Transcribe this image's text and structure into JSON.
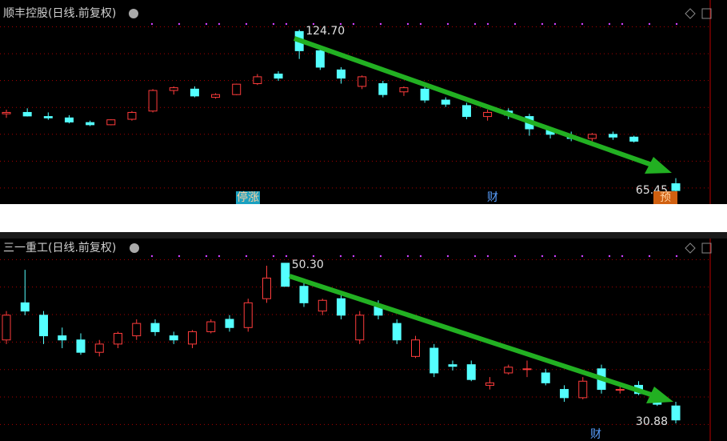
{
  "chart_data": [
    {
      "type": "candlestick",
      "title": "顺丰控股(日线.前复权)",
      "ylim": [
        61.06,
        135.5
      ],
      "max_label": "124.70",
      "min_label": "65.45",
      "markers": [
        "停涨",
        "财",
        "预"
      ],
      "up_color": "#ff3c3c",
      "down_color": "#54ffff",
      "open": [
        94,
        94.5,
        93,
        92.5,
        90.8,
        90,
        92,
        95,
        102.5,
        103,
        100,
        101,
        105,
        108.5,
        124,
        117,
        110,
        104,
        105,
        102,
        103,
        99,
        97,
        93,
        95,
        93,
        88,
        86,
        85,
        86.5,
        85.5,
        73,
        68.5
      ],
      "high": [
        95.5,
        96,
        94.5,
        93.5,
        91.5,
        92,
        95,
        103,
        104,
        104,
        101.5,
        105,
        108.5,
        109.5,
        124.7,
        118,
        111,
        108,
        106,
        104,
        104,
        100,
        98,
        95.5,
        96,
        94,
        89,
        87.5,
        87,
        87.5,
        86,
        73.5,
        70.5
      ],
      "low": [
        92.5,
        93,
        91.8,
        90.5,
        89.5,
        89.8,
        91.5,
        94.5,
        101,
        100,
        99.5,
        100.8,
        104.5,
        106,
        114,
        110,
        105,
        103,
        100,
        100.5,
        98,
        96.5,
        92,
        91.5,
        92,
        86,
        85,
        84,
        84,
        84.5,
        83.5,
        72.5,
        65.45
      ],
      "close": [
        94.5,
        93.2,
        92.5,
        91,
        90,
        91.8,
        94.5,
        102.5,
        103.5,
        100.5,
        101,
        104.8,
        107.5,
        107,
        117,
        111,
        107,
        107.5,
        101,
        103.5,
        99,
        97.5,
        93,
        94.5,
        93.5,
        88.5,
        86.5,
        85,
        86.5,
        85.5,
        84,
        73,
        66
      ]
    },
    {
      "type": "candlestick",
      "title": "三一重工(日线.前复权)",
      "ylim": [
        28.75,
        54.07
      ],
      "max_label": "50.30",
      "min_label": "30.88",
      "markers": [
        "财"
      ],
      "up_color": "#ff3c3c",
      "down_color": "#54ffff",
      "open": [
        41,
        45.5,
        44,
        41.5,
        41,
        39.5,
        40.5,
        41.5,
        43,
        41.5,
        40.5,
        42,
        43.5,
        42.5,
        46,
        50.3,
        47.5,
        44.5,
        46,
        41,
        45,
        43,
        39,
        40,
        38,
        38,
        35.5,
        37,
        37.5,
        37,
        35,
        34,
        37.5,
        35,
        35.5,
        34.5,
        33
      ],
      "high": [
        44.5,
        49.5,
        44.5,
        42.5,
        41.8,
        41,
        42,
        43.5,
        43.5,
        42,
        42.2,
        43.5,
        44,
        46,
        50,
        50.3,
        48,
        46,
        46.5,
        44.5,
        45.8,
        43.5,
        41.5,
        40.5,
        38.5,
        38.5,
        36.5,
        38,
        38.5,
        37.5,
        35.5,
        36.5,
        38,
        35.5,
        36,
        34.8,
        33.5
      ],
      "low": [
        40.5,
        44,
        40.5,
        40,
        39.2,
        39,
        40,
        41,
        41.5,
        40.5,
        40,
        41.8,
        42,
        42,
        45.5,
        47.5,
        45,
        44,
        43.5,
        40.5,
        43.5,
        40.5,
        38.8,
        36.5,
        37.3,
        36,
        35,
        36.8,
        36.5,
        35.5,
        33.5,
        33.8,
        34.5,
        34.5,
        34.3,
        33,
        30.88
      ],
      "close": [
        44,
        44.5,
        41.5,
        41,
        39.5,
        40.5,
        41.8,
        43,
        42,
        41,
        42,
        43.2,
        42.5,
        45.5,
        48.5,
        47.5,
        45.5,
        45.8,
        44,
        44,
        44,
        41,
        41,
        37,
        37.8,
        36.2,
        35.8,
        37.7,
        37.5,
        35.8,
        34,
        36,
        35,
        35,
        34.5,
        33.2,
        31.3
      ]
    }
  ]
}
